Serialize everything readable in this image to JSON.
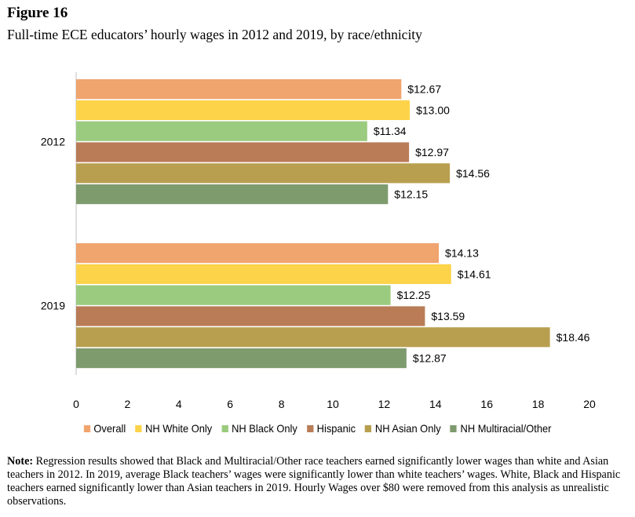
{
  "figure_label": "Figure 16",
  "note": {
    "label": "Note:",
    "text": "Regression results showed that Black and Multiracial/Other race teachers earned significantly lower wages than white and Asian teachers in 2012. In 2019, average Black teachers’ wages were significantly lower than white teachers’ wages. White, Black and Hispanic teachers earned significantly lower than Asian teachers in 2019. Hourly Wages over $80 were removed from this analysis as unrealistic observations."
  },
  "chart_data": {
    "type": "bar",
    "orientation": "horizontal",
    "title": "Full-time ECE educators’ hourly wages in 2012 and 2019, by race/ethnicity",
    "categories": [
      "2012",
      "2019"
    ],
    "series": [
      {
        "name": "Overall",
        "color": "#F0A46E",
        "values": [
          12.67,
          14.13
        ],
        "labels": [
          "$12.67",
          "$14.13"
        ]
      },
      {
        "name": "NH White Only",
        "color": "#FDD34A",
        "values": [
          13.0,
          14.61
        ],
        "labels": [
          "$13.00",
          "$14.61"
        ]
      },
      {
        "name": "NH Black Only",
        "color": "#9BCB7E",
        "values": [
          11.34,
          12.25
        ],
        "labels": [
          "$11.34",
          "$12.25"
        ]
      },
      {
        "name": "Hispanic",
        "color": "#B97C57",
        "values": [
          12.97,
          13.59
        ],
        "labels": [
          "$12.97",
          "$13.59"
        ]
      },
      {
        "name": "NH Asian Only",
        "color": "#B89F4F",
        "values": [
          14.56,
          18.46
        ],
        "labels": [
          "$14.56",
          "$18.46"
        ]
      },
      {
        "name": "NH Multiracial/Other",
        "color": "#7E9B6E",
        "values": [
          12.15,
          12.87
        ],
        "labels": [
          "$12.15",
          "$12.87"
        ]
      }
    ],
    "xlim": [
      0,
      20
    ],
    "xticks": [
      "0",
      "2",
      "4",
      "6",
      "8",
      "10",
      "12",
      "14",
      "16",
      "18",
      "20"
    ],
    "grid": false,
    "legend_position": "bottom"
  }
}
